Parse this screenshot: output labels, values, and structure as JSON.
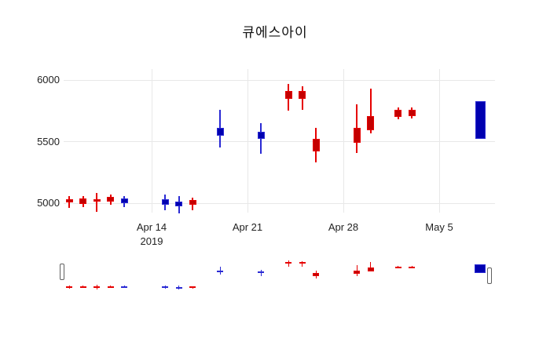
{
  "chart_data": {
    "type": "candlestick",
    "title": "큐에스아이",
    "x_axis": {
      "ticks": [
        {
          "label": "Apr 14",
          "sublabel": "2019",
          "date": "2019-04-14"
        },
        {
          "label": "Apr 21",
          "date": "2019-04-21"
        },
        {
          "label": "Apr 28",
          "date": "2019-04-28"
        },
        {
          "label": "May 5",
          "date": "2019-05-05"
        }
      ]
    },
    "y_axis": {
      "ticks": [
        {
          "label": "6000",
          "value": 6000
        },
        {
          "label": "5500",
          "value": 5500
        },
        {
          "label": "5000",
          "value": 5000
        }
      ],
      "range": [
        4870,
        6110
      ]
    },
    "colors": {
      "up_fill": "#c40000",
      "up_line": "#e60000",
      "down_fill": "#0000b0",
      "down_line": "#2a2ad4",
      "grid": "#e8e8e8"
    },
    "legend": "none",
    "grid": "on",
    "rangeslider": true,
    "candles": [
      {
        "date": "2019-04-08",
        "open": 5005,
        "high": 5060,
        "low": 4960,
        "close": 5030
      },
      {
        "date": "2019-04-09",
        "open": 4995,
        "high": 5060,
        "low": 4970,
        "close": 5040
      },
      {
        "date": "2019-04-10",
        "open": 5010,
        "high": 5080,
        "low": 4930,
        "close": 5030
      },
      {
        "date": "2019-04-11",
        "open": 5010,
        "high": 5070,
        "low": 4990,
        "close": 5050
      },
      {
        "date": "2019-04-12",
        "open": 5040,
        "high": 5055,
        "low": 4970,
        "close": 5000
      },
      {
        "date": "2019-04-15",
        "open": 5030,
        "high": 5070,
        "low": 4940,
        "close": 4985
      },
      {
        "date": "2019-04-16",
        "open": 5015,
        "high": 5060,
        "low": 4920,
        "close": 4975
      },
      {
        "date": "2019-04-17",
        "open": 4985,
        "high": 5045,
        "low": 4940,
        "close": 5025
      },
      {
        "date": "2019-04-19",
        "open": 5610,
        "high": 5760,
        "low": 5450,
        "close": 5550
      },
      {
        "date": "2019-04-22",
        "open": 5580,
        "high": 5650,
        "low": 5400,
        "close": 5520
      },
      {
        "date": "2019-04-24",
        "open": 5850,
        "high": 5970,
        "low": 5750,
        "close": 5910
      },
      {
        "date": "2019-04-25",
        "open": 5850,
        "high": 5950,
        "low": 5760,
        "close": 5910
      },
      {
        "date": "2019-04-26",
        "open": 5420,
        "high": 5610,
        "low": 5330,
        "close": 5520
      },
      {
        "date": "2019-04-29",
        "open": 5490,
        "high": 5800,
        "low": 5410,
        "close": 5610
      },
      {
        "date": "2019-04-30",
        "open": 5590,
        "high": 5930,
        "low": 5570,
        "close": 5710
      },
      {
        "date": "2019-05-02",
        "open": 5700,
        "high": 5780,
        "low": 5680,
        "close": 5760
      },
      {
        "date": "2019-05-03",
        "open": 5710,
        "high": 5780,
        "low": 5690,
        "close": 5760
      },
      {
        "date": "2019-05-08",
        "open": 5830,
        "high": 5830,
        "low": 5520,
        "close": 5520,
        "wide": true
      }
    ]
  }
}
